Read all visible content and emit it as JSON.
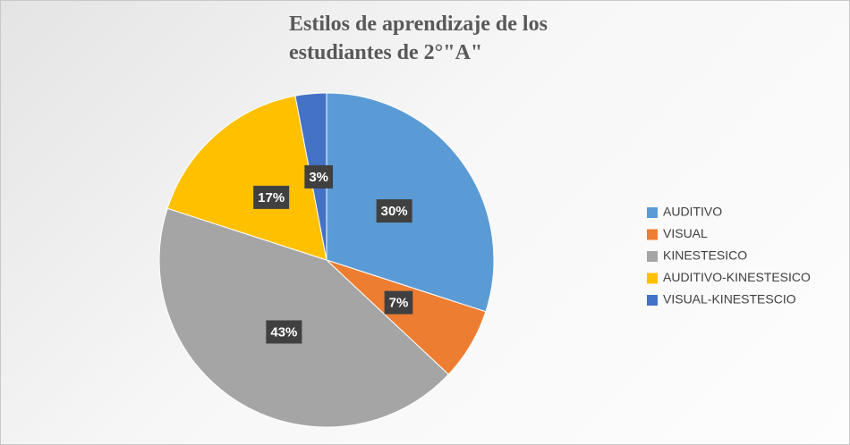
{
  "chart_data": {
    "type": "pie",
    "title": "Estilos de aprendizaje de los estudiantes de 2°\"A\"",
    "categories": [
      "AUDITIVO",
      "VISUAL",
      "KINESTESICO",
      "AUDITIVO-KINESTESICO",
      "VISUAL-KINESTESCIO"
    ],
    "values": [
      30,
      7,
      43,
      17,
      3
    ],
    "value_labels": [
      "30%",
      "7%",
      "43%",
      "17%",
      "3%"
    ],
    "colors": [
      "#5b9bd5",
      "#ed7d31",
      "#a5a5a5",
      "#ffc000",
      "#4472c4"
    ],
    "legend": "right"
  }
}
